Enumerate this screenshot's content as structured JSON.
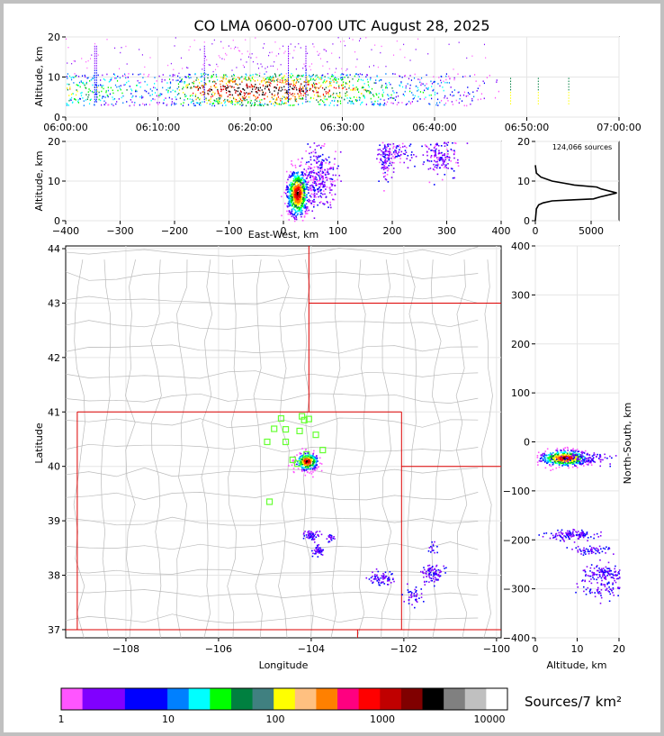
{
  "window_title": "CO LMA 0600-0700 UTC August 28, 2025",
  "chart_data": [
    {
      "id": "time-height",
      "type": "scatter",
      "title": "CO LMA 0600-0700 UTC August 28, 2025",
      "ylabel": "Altitude, km",
      "xlabel": "",
      "x_ticks": [
        "06:00:00",
        "06:10:00",
        "06:20:00",
        "06:30:00",
        "06:40:00",
        "06:50:00",
        "07:00:00"
      ],
      "xlim_min": [
        0,
        60
      ],
      "ylim": [
        0,
        20
      ],
      "y_ticks": [
        0,
        10,
        20
      ],
      "density_profile": [
        {
          "t": 0,
          "rate": 0.6
        },
        {
          "t": 2,
          "rate": 0.55
        },
        {
          "t": 4,
          "rate": 0.45
        },
        {
          "t": 6,
          "rate": 0.4
        },
        {
          "t": 8,
          "rate": 0.35
        },
        {
          "t": 10,
          "rate": 0.35
        },
        {
          "t": 12,
          "rate": 0.5
        },
        {
          "t": 14,
          "rate": 0.8
        },
        {
          "t": 16,
          "rate": 0.9
        },
        {
          "t": 18,
          "rate": 1.0
        },
        {
          "t": 20,
          "rate": 1.0
        },
        {
          "t": 22,
          "rate": 1.0
        },
        {
          "t": 24,
          "rate": 1.0
        },
        {
          "t": 26,
          "rate": 0.9
        },
        {
          "t": 28,
          "rate": 0.8
        },
        {
          "t": 30,
          "rate": 0.75
        },
        {
          "t": 32,
          "rate": 0.6
        },
        {
          "t": 34,
          "rate": 0.45
        },
        {
          "t": 36,
          "rate": 0.35
        },
        {
          "t": 38,
          "rate": 0.3
        },
        {
          "t": 40,
          "rate": 0.35
        },
        {
          "t": 42,
          "rate": 0.25
        },
        {
          "t": 44,
          "rate": 0.15
        },
        {
          "t": 46,
          "rate": 0.05
        },
        {
          "t": 48,
          "rate": 0.0
        },
        {
          "t": 52,
          "rate": 0.02
        },
        {
          "t": 55,
          "rate": 0.02
        },
        {
          "t": 58,
          "rate": 0.0
        },
        {
          "t": 60,
          "rate": 0.0
        }
      ],
      "core_altitude_km": [
        3,
        11
      ]
    },
    {
      "id": "ew-altitude",
      "type": "scatter",
      "xlabel": "East-West, km",
      "ylabel": "Altitude, km",
      "xlim": [
        -400,
        400
      ],
      "x_ticks": [
        -400,
        -300,
        -200,
        -100,
        0,
        100,
        200,
        300,
        400
      ],
      "ylim": [
        0,
        20
      ],
      "y_ticks": [
        0,
        10,
        20
      ],
      "clusters": [
        {
          "x": 25,
          "z": 7,
          "sx": 10,
          "sz": 3,
          "n": 700,
          "dense": true
        },
        {
          "x": 65,
          "z": 11,
          "sx": 15,
          "sz": 4,
          "n": 300,
          "dense": false
        },
        {
          "x": 185,
          "z": 16,
          "sx": 8,
          "sz": 3,
          "n": 120,
          "dense": false
        },
        {
          "x": 210,
          "z": 18,
          "sx": 10,
          "sz": 2,
          "n": 60,
          "dense": false
        },
        {
          "x": 285,
          "z": 17,
          "sx": 18,
          "sz": 3,
          "n": 180,
          "dense": false
        }
      ]
    },
    {
      "id": "altitude-histogram",
      "type": "line",
      "annotation": "124,066 sources",
      "xlim": [
        0,
        7500
      ],
      "x_ticks": [
        0,
        5000
      ],
      "ylim": [
        0,
        20
      ],
      "y_ticks": [
        0,
        10,
        20
      ],
      "x": [
        0,
        100,
        300,
        700,
        1500,
        3000,
        5200,
        5800,
        7300,
        5900,
        5500,
        3500,
        1500,
        500,
        100,
        0
      ],
      "y": [
        0,
        3,
        4,
        4.5,
        5,
        5.2,
        5.5,
        6,
        7,
        8,
        8.5,
        9,
        10,
        11,
        12,
        14
      ]
    },
    {
      "id": "plan-view",
      "type": "scatter",
      "xlabel": "Longitude",
      "ylabel": "Latitude",
      "xlim": [
        -109.3,
        -99.9
      ],
      "x_ticks": [
        -108,
        -106,
        -104,
        -102,
        -100
      ],
      "ylim": [
        36.85,
        44.05
      ],
      "y_ticks": [
        37,
        38,
        39,
        40,
        41,
        42,
        43,
        44
      ],
      "clusters": [
        {
          "lon": -104.1,
          "lat": 40.1,
          "slon": 0.12,
          "slat": 0.08,
          "n": 300,
          "dense": true
        },
        {
          "lon": -104.0,
          "lat": 38.75,
          "slon": 0.08,
          "slat": 0.05,
          "n": 60
        },
        {
          "lon": -103.85,
          "lat": 38.45,
          "slon": 0.06,
          "slat": 0.05,
          "n": 50
        },
        {
          "lon": -103.6,
          "lat": 38.7,
          "slon": 0.04,
          "slat": 0.04,
          "n": 20
        },
        {
          "lon": -102.5,
          "lat": 37.95,
          "slon": 0.15,
          "slat": 0.06,
          "n": 70
        },
        {
          "lon": -101.4,
          "lat": 38.05,
          "slon": 0.12,
          "slat": 0.08,
          "n": 90
        },
        {
          "lon": -101.8,
          "lat": 37.65,
          "slon": 0.08,
          "slat": 0.08,
          "n": 40
        },
        {
          "lon": -101.4,
          "lat": 38.5,
          "slon": 0.05,
          "slat": 0.05,
          "n": 15
        }
      ],
      "stations": [
        {
          "lon": -104.65,
          "lat": 40.88
        },
        {
          "lon": -104.2,
          "lat": 40.92
        },
        {
          "lon": -104.05,
          "lat": 40.87
        },
        {
          "lon": -104.8,
          "lat": 40.69
        },
        {
          "lon": -104.55,
          "lat": 40.68
        },
        {
          "lon": -104.25,
          "lat": 40.65
        },
        {
          "lon": -104.95,
          "lat": 40.45
        },
        {
          "lon": -104.55,
          "lat": 40.45
        },
        {
          "lon": -103.9,
          "lat": 40.58
        },
        {
          "lon": -104.1,
          "lat": 40.22
        },
        {
          "lon": -104.3,
          "lat": 40.05
        },
        {
          "lon": -104.4,
          "lat": 40.12
        },
        {
          "lon": -103.75,
          "lat": 40.3
        },
        {
          "lon": -104.9,
          "lat": 39.35
        },
        {
          "lon": -104.15,
          "lat": 40.85
        }
      ]
    },
    {
      "id": "altitude-ns",
      "type": "scatter",
      "xlabel": "Altitude, km",
      "ylabel": "North-South, km",
      "xlim": [
        0,
        20
      ],
      "x_ticks": [
        0,
        10,
        20
      ],
      "ylim": [
        -400,
        400
      ],
      "y_ticks": [
        -400,
        -300,
        -200,
        -100,
        0,
        100,
        200,
        300,
        400
      ],
      "clusters": [
        {
          "z": 7,
          "ns": -32,
          "sz": 3,
          "sns": 8,
          "n": 500,
          "dense": true
        },
        {
          "z": 12,
          "ns": -32,
          "sz": 3,
          "sns": 6,
          "n": 100
        },
        {
          "z": 8,
          "ns": -188,
          "sz": 3,
          "sns": 5,
          "n": 120
        },
        {
          "z": 13,
          "ns": -220,
          "sz": 2,
          "sns": 4,
          "n": 60
        },
        {
          "z": 17,
          "ns": -268,
          "sz": 3,
          "sns": 10,
          "n": 150
        },
        {
          "z": 16,
          "ns": -300,
          "sz": 3,
          "sns": 10,
          "n": 60
        }
      ]
    },
    {
      "id": "colorbar",
      "type": "heatmap",
      "label": "Sources/7 km²",
      "tick_labels": [
        "1",
        "10",
        "100",
        "1000",
        "10000"
      ],
      "colors": [
        "#ff55ff",
        "#8000ff",
        "#8000ff",
        "#0000ff",
        "#0000ff",
        "#0080ff",
        "#00ffff",
        "#00ff00",
        "#008040",
        "#408080",
        "#ffff00",
        "#ffc080",
        "#ff8000",
        "#ff0080",
        "#ff0000",
        "#c00000",
        "#800000",
        "#000000",
        "#808080",
        "#c0c0c0",
        "#ffffff"
      ]
    }
  ],
  "map": {
    "border_color": "#dd0000",
    "county_color": "#bbbbbb",
    "station_color": "#66ff33"
  }
}
